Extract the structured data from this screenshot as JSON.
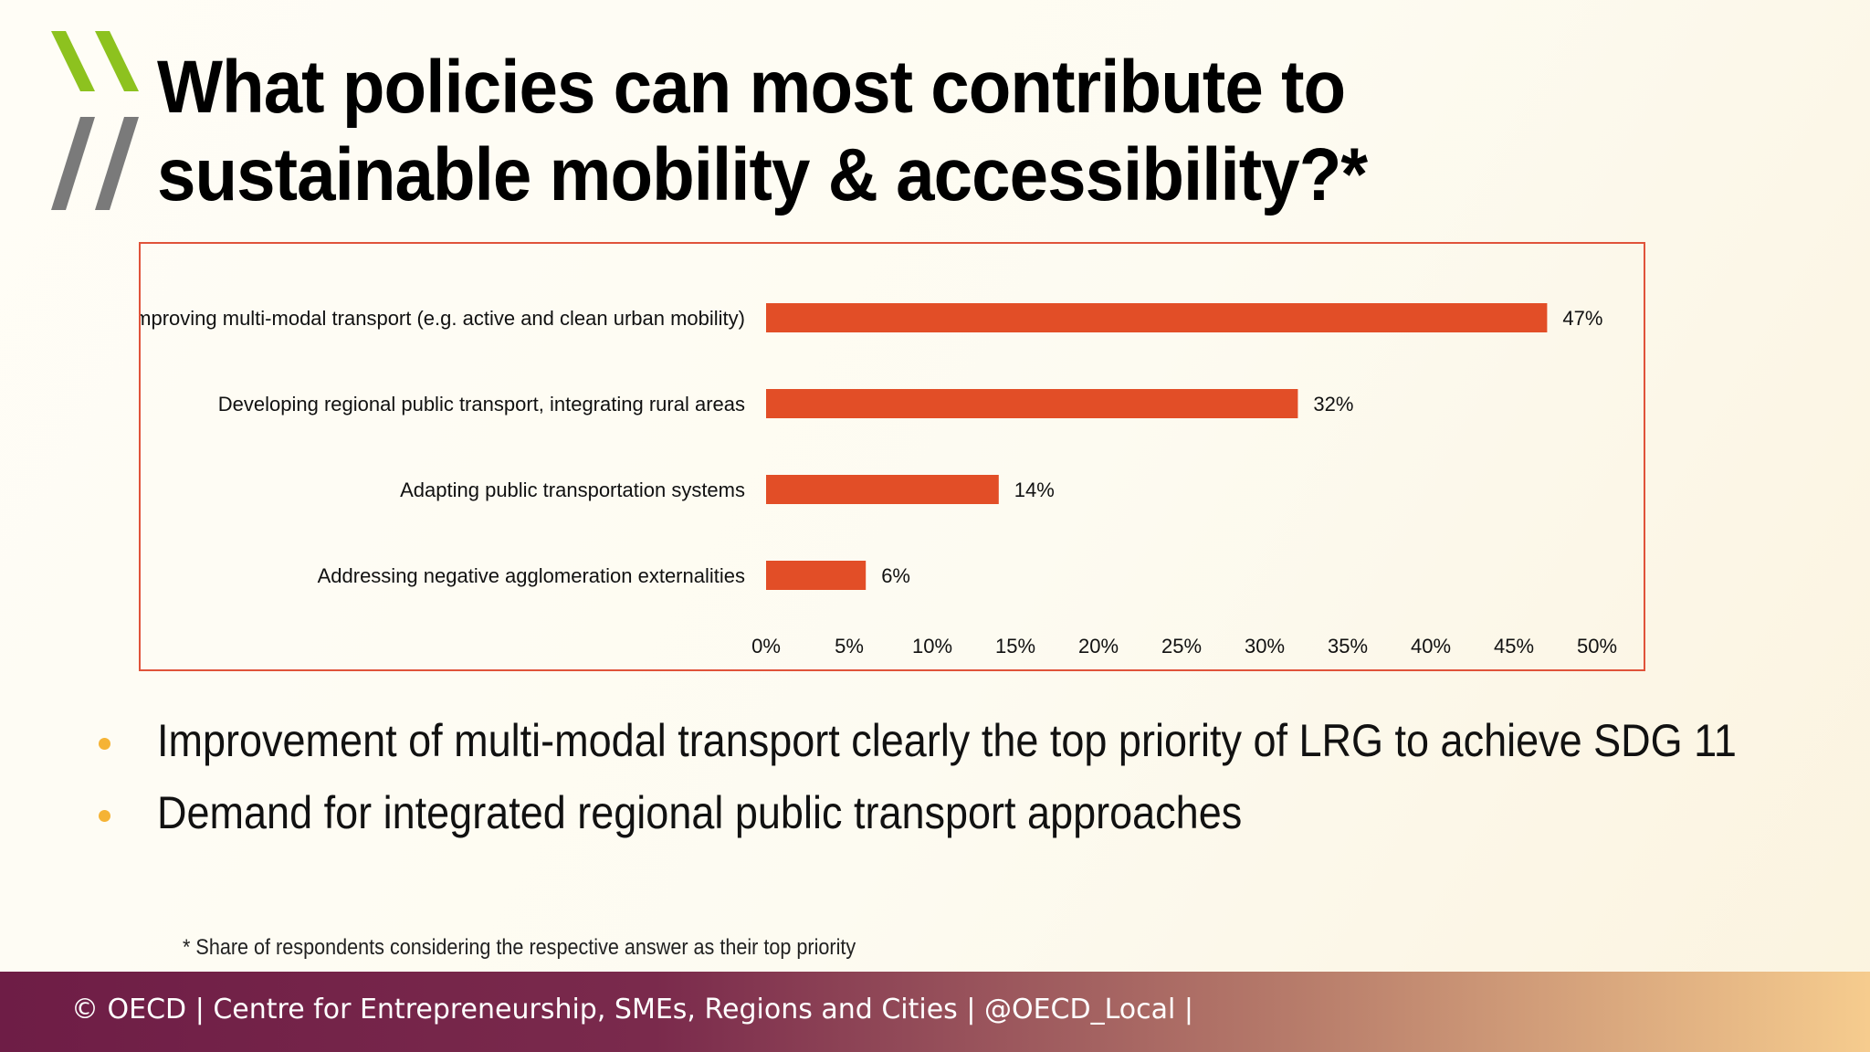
{
  "title": "What policies can most contribute to sustainable mobility & accessibility?*",
  "logo": {
    "icon": "oecd-chevron-logo",
    "colors": {
      "green": "#8dc21f",
      "grey": "#7a7a7a"
    }
  },
  "chart_data": {
    "type": "bar",
    "orientation": "horizontal",
    "categories": [
      "Improving multi-modal transport (e.g. active and clean urban mobility)",
      "Developing regional public transport, integrating rural areas",
      "Adapting public transportation systems",
      "Addressing negative agglomeration externalities"
    ],
    "values": [
      47,
      32,
      14,
      6
    ],
    "value_labels": [
      "47%",
      "32%",
      "14%",
      "6%"
    ],
    "xlim": [
      0,
      50
    ],
    "x_ticks": [
      "0%",
      "5%",
      "10%",
      "15%",
      "20%",
      "25%",
      "30%",
      "35%",
      "40%",
      "45%",
      "50%"
    ],
    "grid": false,
    "legend": "none",
    "bar_color": "#e24e27",
    "frame_color": "#e0533a"
  },
  "bullets": [
    "Improvement of multi-modal transport clearly the top priority of LRG to achieve SDG 11",
    "Demand for integrated regional public transport approaches"
  ],
  "bullet_color": "#f5b335",
  "footnote": "* Share of respondents considering the respective answer as their top priority",
  "footer": "© OECD | Centre for Entrepreneurship, SMEs, Regions and Cities | @OECD_Local |"
}
